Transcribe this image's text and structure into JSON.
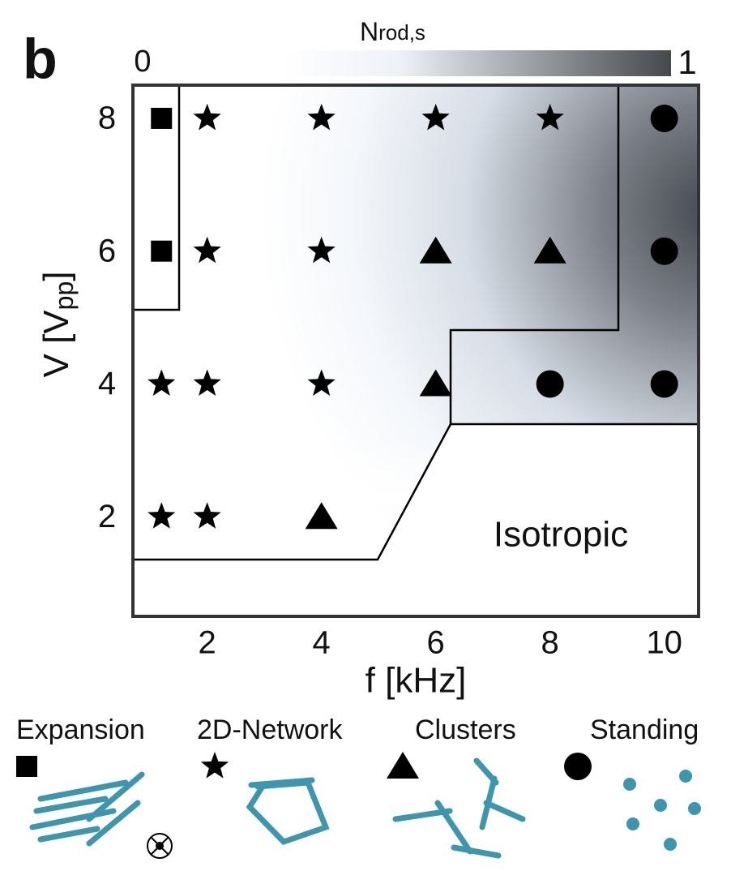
{
  "chart_data": {
    "type": "scatter",
    "panel_label": "b",
    "xlabel": "f [kHz]",
    "ylabel": [
      "V [V",
      "pp",
      "]"
    ],
    "annotation": "Isotropic",
    "colorbar": {
      "label": "N",
      "label_sub": "rod,s",
      "ticks": [
        0,
        1
      ]
    },
    "xlim": [
      0.7,
      10.6
    ],
    "ylim": [
      0.5,
      8.5
    ],
    "xticks": [
      2,
      4,
      6,
      8,
      10
    ],
    "yticks": [
      2,
      4,
      6,
      8
    ],
    "series": [
      {
        "name": "Expansion",
        "marker": "square",
        "color": "#000000",
        "x": [
          1.2,
          1.2
        ],
        "values": [
          8,
          6
        ]
      },
      {
        "name": "2D-Network",
        "marker": "star",
        "color": "#000000",
        "x": [
          2,
          4,
          6,
          8,
          2,
          4,
          1.2,
          2,
          4,
          1.2,
          2
        ],
        "values": [
          8,
          8,
          8,
          8,
          6,
          6,
          4,
          4,
          4,
          2,
          2
        ]
      },
      {
        "name": "Clusters",
        "marker": "triangle",
        "color": "#000000",
        "x": [
          6,
          8,
          6,
          4
        ],
        "values": [
          6,
          6,
          4,
          2
        ]
      },
      {
        "name": "Standing",
        "marker": "circle",
        "color": "#000000",
        "x": [
          10,
          10,
          8,
          10
        ],
        "values": [
          8,
          6,
          4,
          4
        ]
      }
    ]
  }
}
